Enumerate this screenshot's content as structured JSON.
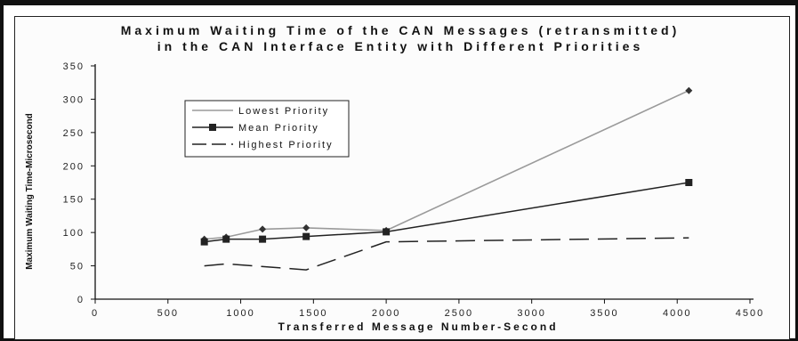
{
  "chart_data": {
    "type": "line",
    "title_line1": "Maximum Waiting Time of the CAN Messages (retransmitted)",
    "title_line2": "in the CAN Interface Entity with Different Priorities",
    "xlabel": "Transferred Message Number-Second",
    "ylabel": "Maximum Waiting Time-Microsecond",
    "xlim": [
      0,
      4500
    ],
    "ylim": [
      0,
      350
    ],
    "xticks": [
      0,
      500,
      1000,
      1500,
      2000,
      2500,
      3000,
      3500,
      4000,
      4500
    ],
    "yticks": [
      0,
      50,
      100,
      150,
      200,
      250,
      300,
      350
    ],
    "xtick_labels": [
      "0",
      "500",
      "1000",
      "1500",
      "2000",
      "2500",
      "3000",
      "3500",
      "4000",
      "4500"
    ],
    "ytick_labels": [
      "0",
      "50",
      "100",
      "150",
      "200",
      "250",
      "300",
      "350"
    ],
    "grid": false,
    "legend_position": "upper-left",
    "series": [
      {
        "name": "Lowest Priority",
        "style": "plain",
        "color": "#9a9a9a",
        "x": [
          750,
          900,
          1150,
          1450,
          2000,
          4080
        ],
        "y": [
          90,
          93,
          105,
          107,
          103,
          313
        ]
      },
      {
        "name": "Mean Priority",
        "style": "square",
        "color": "#222222",
        "x": [
          750,
          900,
          1150,
          1450,
          2000,
          4080
        ],
        "y": [
          86,
          90,
          90,
          94,
          101,
          175
        ]
      },
      {
        "name": "Highest Priority",
        "style": "dash",
        "color": "#222222",
        "x": [
          750,
          900,
          1450,
          2000,
          4080
        ],
        "y": [
          50,
          53,
          44,
          86,
          92
        ]
      }
    ]
  }
}
